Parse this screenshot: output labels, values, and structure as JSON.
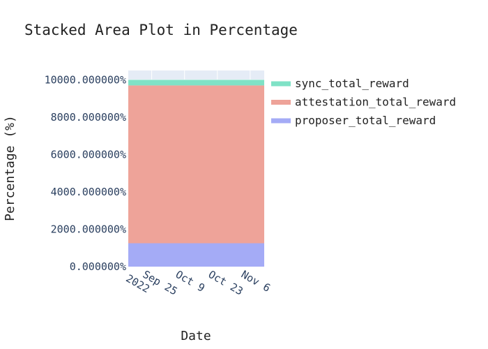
{
  "chart_data": {
    "type": "area",
    "stacking": "percent",
    "title": "Stacked Area Plot in Percentage",
    "xlabel": "Date",
    "ylabel": "Percentage (%)",
    "x": [
      "2022-09-15",
      "2022-11-12"
    ],
    "xticks": [
      {
        "date": "2022-09-25",
        "label": [
          "Sep 25",
          "2022"
        ]
      },
      {
        "date": "2022-10-09",
        "label": [
          "Oct 9"
        ]
      },
      {
        "date": "2022-10-23",
        "label": [
          "Oct 23"
        ]
      },
      {
        "date": "2022-11-06",
        "label": [
          "Nov 6"
        ]
      }
    ],
    "ylim": [
      0,
      10500
    ],
    "yticks": [
      {
        "value": 0,
        "label": "0.000000%"
      },
      {
        "value": 2000,
        "label": "2000.000000%"
      },
      {
        "value": 4000,
        "label": "4000.000000%"
      },
      {
        "value": 6000,
        "label": "6000.000000%"
      },
      {
        "value": 8000,
        "label": "8000.000000%"
      },
      {
        "value": 10000,
        "label": "10000.000000%"
      }
    ],
    "series": [
      {
        "name": "proposer_total_reward",
        "color": "#a4abf6",
        "values": [
          1250,
          1250
        ]
      },
      {
        "name": "attestation_total_reward",
        "color": "#eea399",
        "values": [
          8450,
          8450
        ]
      },
      {
        "name": "sync_total_reward",
        "color": "#7fe2c6",
        "values": [
          300,
          300
        ]
      }
    ],
    "legend_order": [
      "sync_total_reward",
      "attestation_total_reward",
      "proposer_total_reward"
    ],
    "legend_position": "right",
    "grid": true,
    "background": "#e5ecf6"
  }
}
